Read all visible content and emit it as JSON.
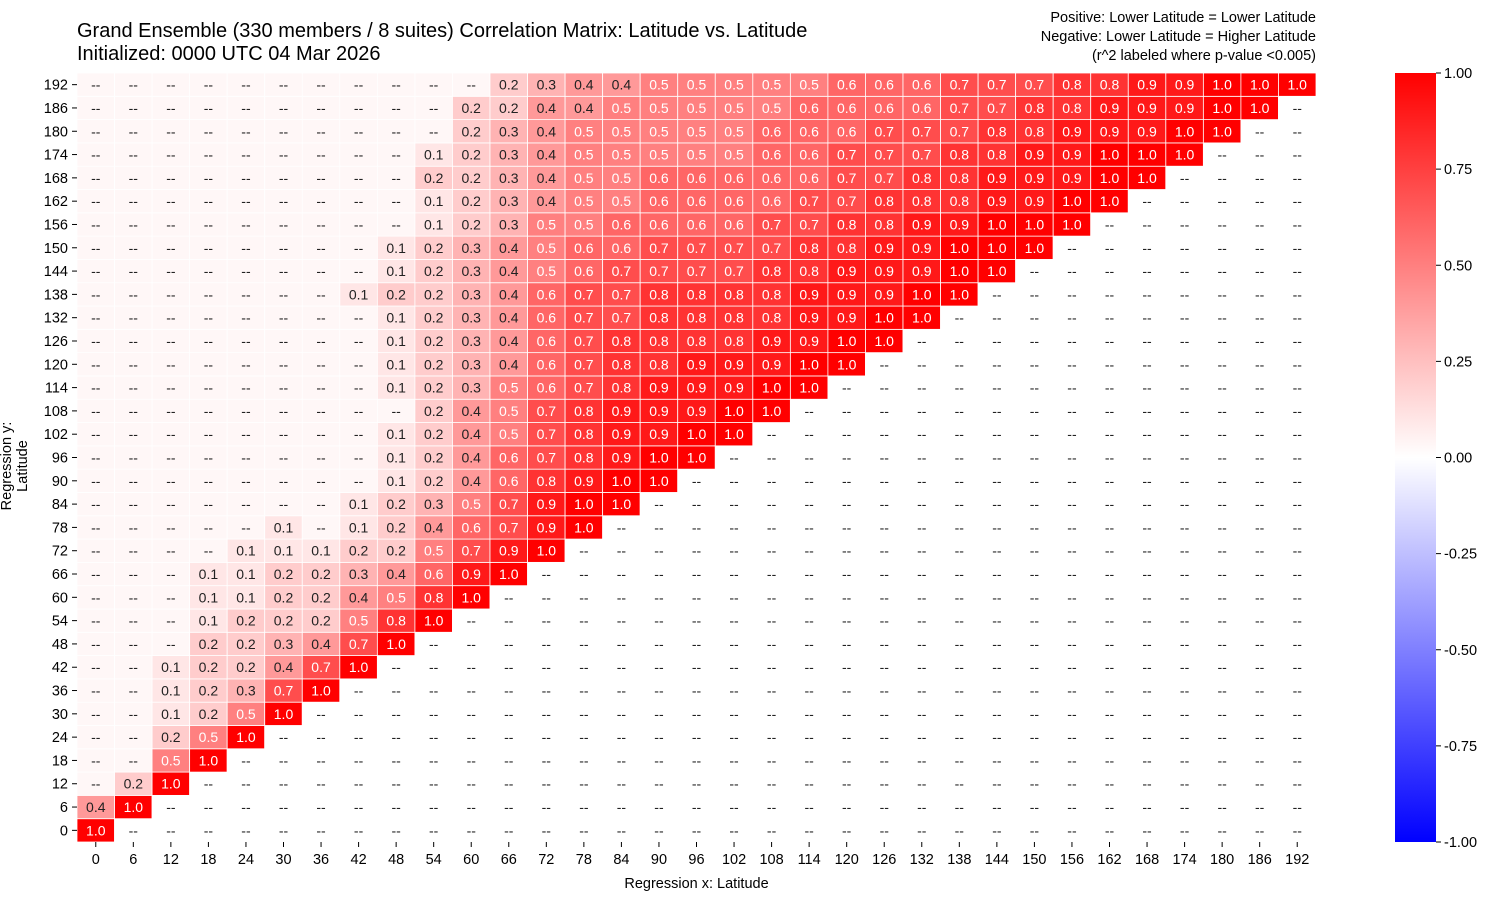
{
  "chart_data": {
    "type": "heatmap",
    "title": "Grand Ensemble (330 members / 8 suites) Correlation Matrix: Latitude vs. Latitude",
    "subtitle": "Initialized: 0000 UTC 04 Mar 2026",
    "notes": [
      "Positive: Lower Latitude = Lower Latitude",
      "Negative: Lower Latitude = Higher Latitude",
      "(r^2 labeled where p-value <0.005)"
    ],
    "xlabel": "Regression x: Latitude",
    "ylabel": "Regression y: Latitude",
    "x": [
      0,
      6,
      12,
      18,
      24,
      30,
      36,
      42,
      48,
      54,
      60,
      66,
      72,
      78,
      84,
      90,
      96,
      102,
      108,
      114,
      120,
      126,
      132,
      138,
      144,
      150,
      156,
      162,
      168,
      174,
      180,
      186,
      192
    ],
    "y": [
      0,
      6,
      12,
      18,
      24,
      30,
      36,
      42,
      48,
      54,
      60,
      66,
      72,
      78,
      84,
      90,
      96,
      102,
      108,
      114,
      120,
      126,
      132,
      138,
      144,
      150,
      156,
      162,
      168,
      174,
      180,
      186,
      192
    ],
    "missing_label": "--",
    "colorbar": {
      "range": [
        -1,
        1
      ],
      "ticks": [
        "1.00",
        "0.75",
        "0.50",
        "0.25",
        "0.00",
        "-0.25",
        "-0.50",
        "-0.75",
        "-1.00"
      ],
      "tick_values": [
        1,
        0.75,
        0.5,
        0.25,
        0,
        -0.25,
        -0.5,
        -0.75,
        -1
      ],
      "colormap": "bwr",
      "low_color": "#0000ff",
      "mid_color": "#ffffff",
      "high_color": "#ff0000"
    },
    "rows": {
      "192": {
        "66": 0.2,
        "72": 0.3,
        "78": 0.4,
        "84": 0.4,
        "90": 0.5,
        "96": 0.5,
        "102": 0.5,
        "108": 0.5,
        "114": 0.5,
        "120": 0.6,
        "126": 0.6,
        "132": 0.6,
        "138": 0.7,
        "144": 0.7,
        "150": 0.7,
        "156": 0.8,
        "162": 0.8,
        "168": 0.9,
        "174": 0.9,
        "180": 1.0,
        "186": 1.0,
        "192": 1.0
      },
      "186": {
        "60": 0.2,
        "66": 0.2,
        "72": 0.4,
        "78": 0.4,
        "84": 0.5,
        "90": 0.5,
        "96": 0.5,
        "102": 0.5,
        "108": 0.5,
        "114": 0.6,
        "120": 0.6,
        "126": 0.6,
        "132": 0.6,
        "138": 0.7,
        "144": 0.7,
        "150": 0.8,
        "156": 0.8,
        "162": 0.9,
        "168": 0.9,
        "174": 0.9,
        "180": 1.0,
        "186": 1.0
      },
      "180": {
        "60": 0.2,
        "66": 0.3,
        "72": 0.4,
        "78": 0.5,
        "84": 0.5,
        "90": 0.5,
        "96": 0.5,
        "102": 0.5,
        "108": 0.6,
        "114": 0.6,
        "120": 0.6,
        "126": 0.7,
        "132": 0.7,
        "138": 0.7,
        "144": 0.8,
        "150": 0.8,
        "156": 0.9,
        "162": 0.9,
        "168": 0.9,
        "174": 1.0,
        "180": 1.0
      },
      "174": {
        "54": 0.1,
        "60": 0.2,
        "66": 0.3,
        "72": 0.4,
        "78": 0.5,
        "84": 0.5,
        "90": 0.5,
        "96": 0.5,
        "102": 0.5,
        "108": 0.6,
        "114": 0.6,
        "120": 0.7,
        "126": 0.7,
        "132": 0.7,
        "138": 0.8,
        "144": 0.8,
        "150": 0.9,
        "156": 0.9,
        "162": 1.0,
        "168": 1.0,
        "174": 1.0
      },
      "168": {
        "54": 0.2,
        "60": 0.2,
        "66": 0.3,
        "72": 0.4,
        "78": 0.5,
        "84": 0.5,
        "90": 0.6,
        "96": 0.6,
        "102": 0.6,
        "108": 0.6,
        "114": 0.6,
        "120": 0.7,
        "126": 0.7,
        "132": 0.8,
        "138": 0.8,
        "144": 0.9,
        "150": 0.9,
        "156": 0.9,
        "162": 1.0,
        "168": 1.0
      },
      "162": {
        "54": 0.1,
        "60": 0.2,
        "66": 0.3,
        "72": 0.4,
        "78": 0.5,
        "84": 0.5,
        "90": 0.6,
        "96": 0.6,
        "102": 0.6,
        "108": 0.6,
        "114": 0.7,
        "120": 0.7,
        "126": 0.8,
        "132": 0.8,
        "138": 0.8,
        "144": 0.9,
        "150": 0.9,
        "156": 1.0,
        "162": 1.0
      },
      "156": {
        "54": 0.1,
        "60": 0.2,
        "66": 0.3,
        "72": 0.5,
        "78": 0.5,
        "84": 0.6,
        "90": 0.6,
        "96": 0.6,
        "102": 0.6,
        "108": 0.7,
        "114": 0.7,
        "120": 0.8,
        "126": 0.8,
        "132": 0.9,
        "138": 0.9,
        "144": 1.0,
        "150": 1.0,
        "156": 1.0
      },
      "150": {
        "48": 0.1,
        "54": 0.2,
        "60": 0.3,
        "66": 0.4,
        "72": 0.5,
        "78": 0.6,
        "84": 0.6,
        "90": 0.7,
        "96": 0.7,
        "102": 0.7,
        "108": 0.7,
        "114": 0.8,
        "120": 0.8,
        "126": 0.9,
        "132": 0.9,
        "138": 1.0,
        "144": 1.0,
        "150": 1.0
      },
      "144": {
        "48": 0.1,
        "54": 0.2,
        "60": 0.3,
        "66": 0.4,
        "72": 0.5,
        "78": 0.6,
        "84": 0.7,
        "90": 0.7,
        "96": 0.7,
        "102": 0.7,
        "108": 0.8,
        "114": 0.8,
        "120": 0.9,
        "126": 0.9,
        "132": 0.9,
        "138": 1.0,
        "144": 1.0
      },
      "138": {
        "42": 0.1,
        "48": 0.2,
        "54": 0.2,
        "60": 0.3,
        "66": 0.4,
        "72": 0.6,
        "78": 0.7,
        "84": 0.7,
        "90": 0.8,
        "96": 0.8,
        "102": 0.8,
        "108": 0.8,
        "114": 0.9,
        "120": 0.9,
        "126": 0.9,
        "132": 1.0,
        "138": 1.0
      },
      "132": {
        "48": 0.1,
        "54": 0.2,
        "60": 0.3,
        "66": 0.4,
        "72": 0.6,
        "78": 0.7,
        "84": 0.7,
        "90": 0.8,
        "96": 0.8,
        "102": 0.8,
        "108": 0.8,
        "114": 0.9,
        "120": 0.9,
        "126": 1.0,
        "132": 1.0
      },
      "126": {
        "48": 0.1,
        "54": 0.2,
        "60": 0.3,
        "66": 0.4,
        "72": 0.6,
        "78": 0.7,
        "84": 0.8,
        "90": 0.8,
        "96": 0.8,
        "102": 0.8,
        "108": 0.9,
        "114": 0.9,
        "120": 1.0,
        "126": 1.0
      },
      "120": {
        "48": 0.1,
        "54": 0.2,
        "60": 0.3,
        "66": 0.4,
        "72": 0.6,
        "78": 0.7,
        "84": 0.8,
        "90": 0.8,
        "96": 0.9,
        "102": 0.9,
        "108": 0.9,
        "114": 1.0,
        "120": 1.0
      },
      "114": {
        "48": 0.1,
        "54": 0.2,
        "60": 0.3,
        "66": 0.5,
        "72": 0.6,
        "78": 0.7,
        "84": 0.8,
        "90": 0.9,
        "96": 0.9,
        "102": 0.9,
        "108": 1.0,
        "114": 1.0
      },
      "108": {
        "54": 0.2,
        "60": 0.4,
        "66": 0.5,
        "72": 0.7,
        "78": 0.8,
        "84": 0.9,
        "90": 0.9,
        "96": 0.9,
        "102": 1.0,
        "108": 1.0
      },
      "102": {
        "48": 0.1,
        "54": 0.2,
        "60": 0.4,
        "66": 0.5,
        "72": 0.7,
        "78": 0.8,
        "84": 0.9,
        "90": 0.9,
        "96": 1.0,
        "102": 1.0
      },
      "96": {
        "48": 0.1,
        "54": 0.2,
        "60": 0.4,
        "66": 0.6,
        "72": 0.7,
        "78": 0.8,
        "84": 0.9,
        "90": 1.0,
        "96": 1.0
      },
      "90": {
        "48": 0.1,
        "54": 0.2,
        "60": 0.4,
        "66": 0.6,
        "72": 0.8,
        "78": 0.9,
        "84": 1.0,
        "90": 1.0
      },
      "84": {
        "42": 0.1,
        "48": 0.2,
        "54": 0.3,
        "60": 0.5,
        "66": 0.7,
        "72": 0.9,
        "78": 1.0,
        "84": 1.0
      },
      "78": {
        "30": 0.1,
        "42": 0.1,
        "48": 0.2,
        "54": 0.4,
        "60": 0.6,
        "66": 0.7,
        "72": 0.9,
        "78": 1.0
      },
      "72": {
        "24": 0.1,
        "30": 0.1,
        "36": 0.1,
        "42": 0.2,
        "48": 0.2,
        "54": 0.5,
        "60": 0.7,
        "66": 0.9,
        "72": 1.0
      },
      "66": {
        "18": 0.1,
        "24": 0.1,
        "30": 0.2,
        "36": 0.2,
        "42": 0.3,
        "48": 0.4,
        "54": 0.6,
        "60": 0.9,
        "66": 1.0
      },
      "60": {
        "18": 0.1,
        "24": 0.1,
        "30": 0.2,
        "36": 0.2,
        "42": 0.4,
        "48": 0.5,
        "54": 0.8,
        "60": 1.0
      },
      "54": {
        "18": 0.1,
        "24": 0.2,
        "30": 0.2,
        "36": 0.2,
        "42": 0.5,
        "48": 0.8,
        "54": 1.0
      },
      "48": {
        "18": 0.2,
        "24": 0.2,
        "30": 0.3,
        "36": 0.4,
        "42": 0.7,
        "48": 1.0
      },
      "42": {
        "12": 0.1,
        "18": 0.2,
        "24": 0.2,
        "30": 0.4,
        "36": 0.7,
        "42": 1.0
      },
      "36": {
        "12": 0.1,
        "18": 0.2,
        "24": 0.3,
        "30": 0.7,
        "36": 1.0
      },
      "30": {
        "12": 0.1,
        "18": 0.2,
        "24": 0.5,
        "30": 1.0
      },
      "24": {
        "12": 0.2,
        "18": 0.5,
        "24": 1.0
      },
      "18": {
        "12": 0.5,
        "18": 1.0
      },
      "12": {
        "6": 0.2,
        "12": 1.0
      },
      "6": {
        "0": 0.4,
        "6": 1.0
      },
      "0": {
        "0": 1.0
      }
    }
  }
}
